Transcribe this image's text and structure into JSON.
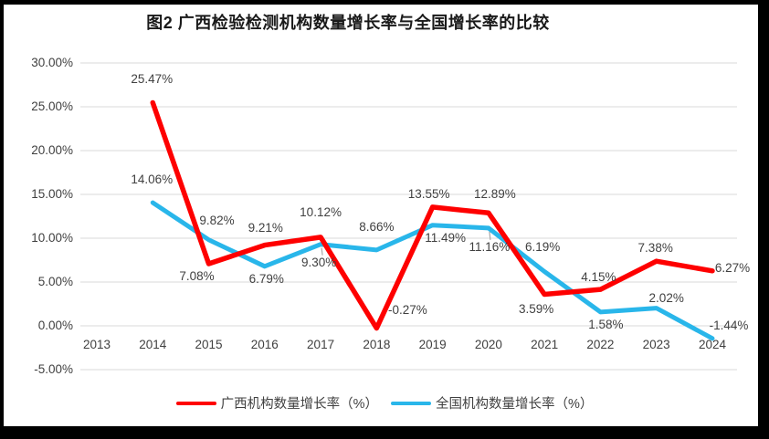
{
  "page": {
    "background": "#ffffff",
    "frame_color": "#000000"
  },
  "chart_data": {
    "type": "line",
    "title": "图2 广西检验检测机构数量增长率与全国增长率的比较",
    "categories": [
      "2013",
      "2014",
      "2015",
      "2016",
      "2017",
      "2018",
      "2019",
      "2020",
      "2021",
      "2022",
      "2023",
      "2024"
    ],
    "series": [
      {
        "key": "guangxi",
        "name": "广西机构数量增长率（%）",
        "color": "#fe0000",
        "values": [
          null,
          25.47,
          7.08,
          9.21,
          10.12,
          -0.27,
          13.55,
          12.89,
          3.59,
          4.15,
          7.38,
          6.27
        ],
        "label_offsets": [
          null,
          [
            -1,
            -25
          ],
          [
            -13,
            14
          ],
          [
            1,
            -19
          ],
          [
            0,
            -27
          ],
          [
            34,
            -20
          ],
          [
            -4,
            -14
          ],
          [
            7,
            -20
          ],
          [
            -9,
            16
          ],
          [
            -2,
            -13
          ],
          [
            -1,
            -14
          ],
          [
            22,
            -3
          ]
        ]
      },
      {
        "key": "national",
        "name": "全国机构数量增长率（%）",
        "color": "#29b6ea",
        "values": [
          null,
          14.06,
          9.82,
          6.79,
          9.3,
          8.66,
          11.49,
          11.16,
          6.19,
          1.58,
          2.02,
          -1.44
        ],
        "label_offsets": [
          null,
          [
            -1,
            -25
          ],
          [
            9,
            -21
          ],
          [
            2,
            14
          ],
          [
            -2,
            20
          ],
          [
            0,
            -25
          ],
          [
            14,
            14
          ],
          [
            1,
            21
          ],
          [
            -2,
            -27
          ],
          [
            6,
            14
          ],
          [
            11,
            -11
          ],
          [
            18,
            -14
          ]
        ]
      }
    ],
    "leaders": [
      {
        "series": 1,
        "point": 4
      },
      {
        "series": 1,
        "point": 7
      }
    ],
    "y_ticks": [
      30,
      25,
      20,
      15,
      10,
      5,
      0,
      -5
    ],
    "ylim": [
      -5,
      30
    ],
    "value_format": "0.00%",
    "grid": true,
    "grid_color": "#d9d9d9",
    "leader_color": "#a6a6a6",
    "label_color": "#404040",
    "legend_position": "bottom"
  }
}
